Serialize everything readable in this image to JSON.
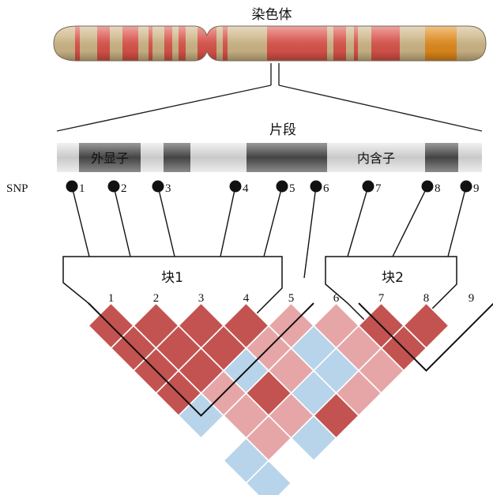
{
  "chromosome": {
    "label": "染色体"
  },
  "segment": {
    "label": "片段",
    "regions": [
      {
        "label": "外显子"
      },
      {
        "label": ""
      },
      {
        "label": ""
      },
      {
        "label": "内含子"
      },
      {
        "label": ""
      }
    ]
  },
  "snp": {
    "label": "SNP",
    "items": [
      {
        "label": "1"
      },
      {
        "label": "2"
      },
      {
        "label": "3"
      },
      {
        "label": "4"
      },
      {
        "label": "5"
      },
      {
        "label": "6"
      },
      {
        "label": "7"
      },
      {
        "label": "8"
      },
      {
        "label": "9"
      }
    ]
  },
  "blocks": [
    {
      "label": "块1",
      "snps": [
        1,
        5
      ]
    },
    {
      "label": "块2",
      "snps": [
        7,
        9
      ]
    }
  ],
  "ld_matrix": {
    "index_labels": [
      "1",
      "2",
      "3",
      "4",
      "5",
      "6",
      "7",
      "8",
      "9"
    ],
    "legend_levels": {
      "H": "#c35350",
      "M": "#e6a6a8",
      "B": "#b7d4ea",
      "W": "#ffffff"
    },
    "rows": [
      "HHHHMMHH",
      "HHHMBMH",
      "HHBMBM",
      "HMHBM",
      "BMMH",
      "WMB",
      "BW",
      "B"
    ]
  }
}
